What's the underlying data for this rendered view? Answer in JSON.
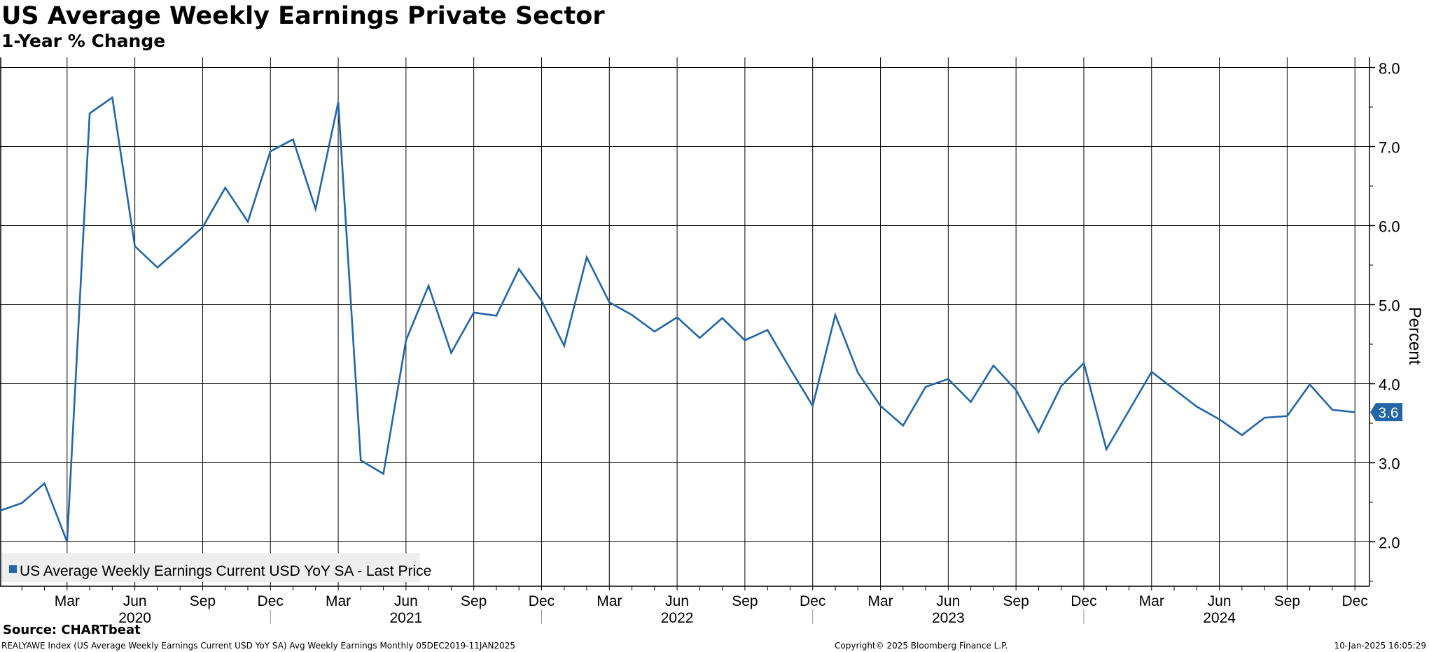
{
  "title": "US Average Weekly Earnings Private Sector",
  "subtitle": "1-Year % Change",
  "source": "Source: CHARTbeat",
  "footer": {
    "left": "REALYAWE Index (US Average Weekly Earnings Current USD YoY SA) Avg Weekly Earnings  Monthly 05DEC2019-11JAN2025",
    "center": "Copyright© 2025 Bloomberg Finance L.P.",
    "right": "10-Jan-2025 16:05:29"
  },
  "colors": {
    "series": "#2266a8",
    "grid": "#000000",
    "legend_bg": "#eeeeee"
  },
  "chart_data": {
    "type": "line",
    "title": "US Average Weekly Earnings Private Sector",
    "subtitle": "1-Year % Change",
    "ylabel": "Percent",
    "ylim": [
      1.45,
      8.15
    ],
    "yticks": [
      2.0,
      3.0,
      4.0,
      5.0,
      6.0,
      7.0,
      8.0
    ],
    "ytick_labels": [
      "2.0",
      "3.0",
      "4.0",
      "5.0",
      "6.0",
      "7.0",
      "8.0"
    ],
    "grid": true,
    "legend_position": "bottom-left",
    "x_months": [
      "2019-12",
      "2020-01",
      "2020-02",
      "2020-03",
      "2020-04",
      "2020-05",
      "2020-06",
      "2020-07",
      "2020-08",
      "2020-09",
      "2020-10",
      "2020-11",
      "2020-12",
      "2021-01",
      "2021-02",
      "2021-03",
      "2021-04",
      "2021-05",
      "2021-06",
      "2021-07",
      "2021-08",
      "2021-09",
      "2021-10",
      "2021-11",
      "2021-12",
      "2022-01",
      "2022-02",
      "2022-03",
      "2022-04",
      "2022-05",
      "2022-06",
      "2022-07",
      "2022-08",
      "2022-09",
      "2022-10",
      "2022-11",
      "2022-12",
      "2023-01",
      "2023-02",
      "2023-03",
      "2023-04",
      "2023-05",
      "2023-06",
      "2023-07",
      "2023-08",
      "2023-09",
      "2023-10",
      "2023-11",
      "2023-12",
      "2024-01",
      "2024-02",
      "2024-03",
      "2024-04",
      "2024-05",
      "2024-06",
      "2024-07",
      "2024-08",
      "2024-09",
      "2024-10",
      "2024-11",
      "2024-12"
    ],
    "month_ticks": [
      {
        "month": "2020-03",
        "label": "Mar"
      },
      {
        "month": "2020-06",
        "label": "Jun"
      },
      {
        "month": "2020-09",
        "label": "Sep"
      },
      {
        "month": "2020-12",
        "label": "Dec"
      },
      {
        "month": "2021-03",
        "label": "Mar"
      },
      {
        "month": "2021-06",
        "label": "Jun"
      },
      {
        "month": "2021-09",
        "label": "Sep"
      },
      {
        "month": "2021-12",
        "label": "Dec"
      },
      {
        "month": "2022-03",
        "label": "Mar"
      },
      {
        "month": "2022-06",
        "label": "Jun"
      },
      {
        "month": "2022-09",
        "label": "Sep"
      },
      {
        "month": "2022-12",
        "label": "Dec"
      },
      {
        "month": "2023-03",
        "label": "Mar"
      },
      {
        "month": "2023-06",
        "label": "Jun"
      },
      {
        "month": "2023-09",
        "label": "Sep"
      },
      {
        "month": "2023-12",
        "label": "Dec"
      },
      {
        "month": "2024-03",
        "label": "Mar"
      },
      {
        "month": "2024-06",
        "label": "Jun"
      },
      {
        "month": "2024-09",
        "label": "Sep"
      },
      {
        "month": "2024-12",
        "label": "Dec"
      }
    ],
    "year_labels": [
      {
        "month": "2020-06",
        "label": "2020"
      },
      {
        "month": "2021-06",
        "label": "2021"
      },
      {
        "month": "2022-06",
        "label": "2022"
      },
      {
        "month": "2023-06",
        "label": "2023"
      },
      {
        "month": "2024-06",
        "label": "2024"
      }
    ],
    "year_separators": [
      "2020-12",
      "2021-12",
      "2022-12",
      "2023-12"
    ],
    "series": [
      {
        "name": "US Average Weekly Earnings Current USD YoY SA - Last Price",
        "last_label": "3.6",
        "values": [
          2.39,
          2.49,
          2.74,
          2.0,
          7.42,
          7.62,
          5.74,
          5.47,
          5.72,
          5.98,
          6.48,
          6.05,
          6.94,
          7.09,
          6.21,
          7.56,
          3.03,
          2.86,
          4.55,
          5.24,
          4.39,
          4.9,
          4.86,
          5.45,
          5.05,
          4.48,
          5.6,
          5.03,
          4.87,
          4.66,
          4.84,
          4.58,
          4.83,
          4.55,
          4.68,
          4.19,
          3.72,
          4.87,
          4.14,
          3.72,
          3.47,
          3.96,
          4.06,
          3.77,
          4.23,
          3.92,
          3.39,
          3.97,
          4.26,
          3.17,
          3.66,
          4.15,
          3.93,
          3.71,
          3.55,
          3.35,
          3.57,
          3.59,
          3.99,
          3.67,
          3.64
        ]
      }
    ]
  }
}
